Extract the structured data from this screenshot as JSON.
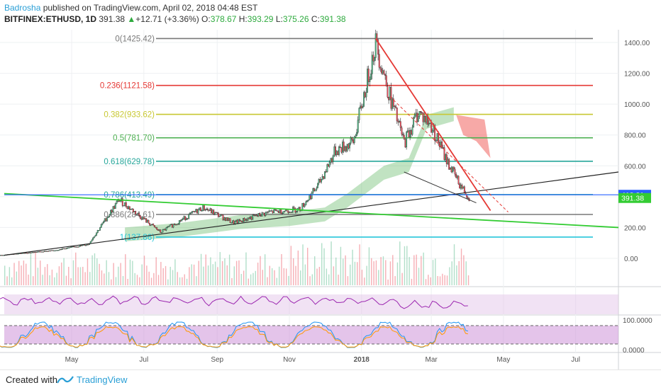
{
  "header": {
    "author": "Badrosha",
    "published": " published on TradingView.com, April 02, 2018 04:48 EST",
    "symbol": "BITFINEX:ETHUSD, 1D",
    "last": "391.38",
    "change": "+12.71 (+3.36%)",
    "o_label": "O:",
    "o": "378.67",
    "h_label": "H:",
    "h": "393.29",
    "l_label": "L:",
    "l": "375.26",
    "c_label": "C:",
    "c": "391.38"
  },
  "footer": {
    "created": "Created with",
    "brand": "TradingView"
  },
  "colors": {
    "up": "#53b987",
    "down": "#eb4d5c",
    "red_line": "#e53935",
    "green_line": "#33cc33",
    "blue_line": "#2962ff",
    "rsi": "#9c27b0",
    "stoch_k": "#2196f3",
    "stoch_d": "#ff9800",
    "cloud_green": "#4caf50",
    "cloud_red": "#ef5350"
  },
  "chart_data": {
    "type": "candlestick",
    "symbol": "BITFINEX:ETHUSD",
    "interval": "1D",
    "y_axis_ticks": [
      "1400.00",
      "1200.00",
      "1000.00",
      "800.00",
      "600.00",
      "400.00",
      "200.00",
      "0.00"
    ],
    "ylim": [
      -40,
      1480
    ],
    "x_axis_ticks": [
      "May",
      "Jul",
      "Sep",
      "Nov",
      "2018",
      "Mar",
      "May",
      "Jul"
    ],
    "price_labels": [
      {
        "text": "412.21",
        "value": 412.21,
        "color": "#2962ff"
      },
      {
        "text": "391.38",
        "value": 391.38,
        "color": "#33cc33"
      }
    ],
    "fibonacci": [
      {
        "label": "0(1425.42)",
        "value": 1425.42,
        "color": "#787878"
      },
      {
        "label": "0.236(1121.58)",
        "value": 1121.58,
        "color": "#e53935"
      },
      {
        "label": "0.382(933.62)",
        "value": 933.62,
        "color": "#c8c832"
      },
      {
        "label": "0.5(781.70)",
        "value": 781.7,
        "color": "#4caf50"
      },
      {
        "label": "0.618(629.78)",
        "value": 629.78,
        "color": "#26a69a"
      },
      {
        "label": "0.786(413.49)",
        "value": 413.49,
        "color": "#26a69a"
      },
      {
        "label": "0.886(284.61)",
        "value": 284.61,
        "color": "#787878"
      },
      {
        "label": "1(137.86)",
        "value": 137.86,
        "color": "#26c6da"
      }
    ],
    "price_path": [
      {
        "date": "2017-03",
        "close": 20
      },
      {
        "date": "2017-04-15",
        "close": 50
      },
      {
        "date": "2017-05-15",
        "close": 90
      },
      {
        "date": "2017-06-10",
        "close": 380
      },
      {
        "date": "2017-07-15",
        "close": 170
      },
      {
        "date": "2017-08-20",
        "close": 330
      },
      {
        "date": "2017-09-15",
        "close": 230
      },
      {
        "date": "2017-10-15",
        "close": 300
      },
      {
        "date": "2017-11-10",
        "close": 320
      },
      {
        "date": "2017-11-25",
        "close": 470
      },
      {
        "date": "2017-12-10",
        "close": 700
      },
      {
        "date": "2017-12-25",
        "close": 750
      },
      {
        "date": "2018-01-13",
        "close": 1400
      },
      {
        "date": "2018-01-25",
        "close": 1050
      },
      {
        "date": "2018-02-06",
        "close": 750
      },
      {
        "date": "2018-02-18",
        "close": 950
      },
      {
        "date": "2018-03-01",
        "close": 860
      },
      {
        "date": "2018-03-15",
        "close": 620
      },
      {
        "date": "2018-03-25",
        "close": 480
      },
      {
        "date": "2018-04-02",
        "close": 391.38
      }
    ],
    "rsi_axis": [],
    "stoch_axis": [
      "100.0000",
      "0.0000"
    ]
  }
}
